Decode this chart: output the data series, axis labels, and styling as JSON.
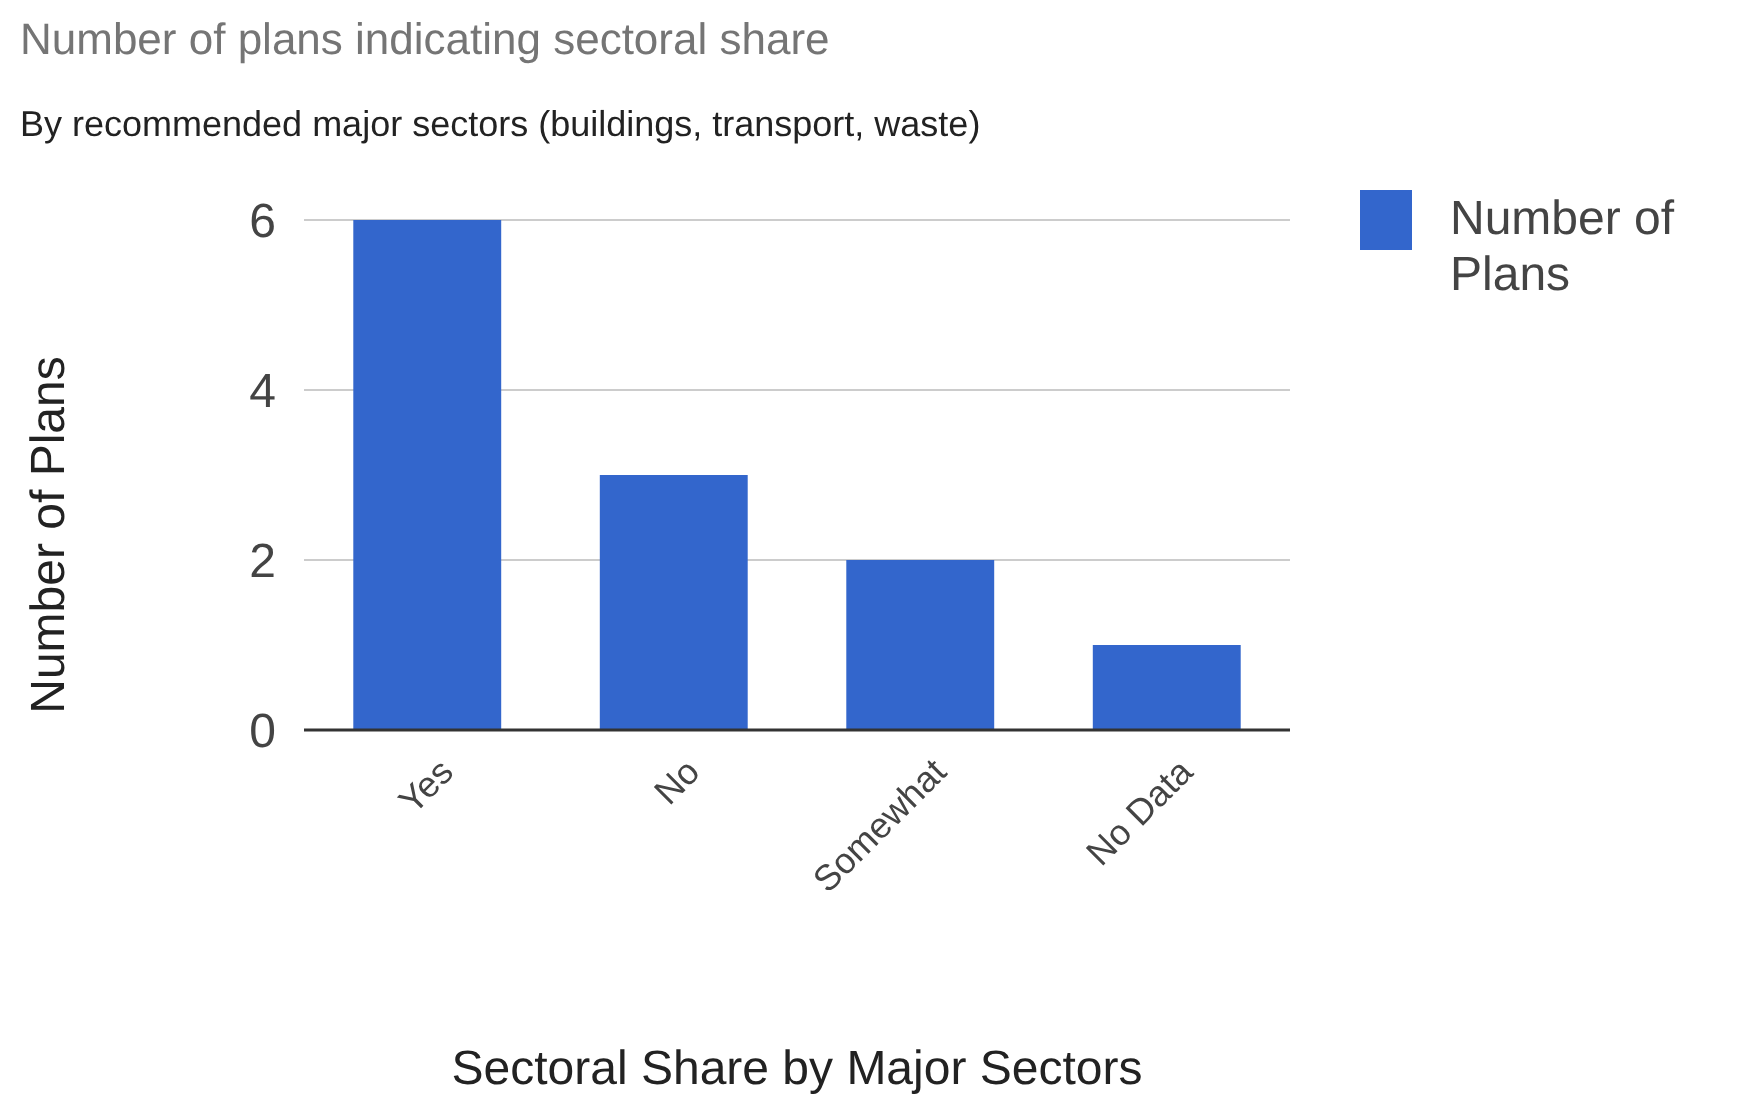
{
  "chart_data": {
    "type": "bar",
    "title": "Number of plans indicating sectoral share",
    "subtitle": "By recommended major sectors (buildings, transport, waste)",
    "xlabel": "Sectoral Share by Major Sectors",
    "ylabel": "Number of Plans",
    "categories": [
      "Yes",
      "No",
      "Somewhat",
      "No Data"
    ],
    "series": [
      {
        "name": "Number of Plans",
        "color": "#3366cc",
        "values": [
          6,
          3,
          2,
          1
        ]
      }
    ],
    "ylim": [
      0,
      6
    ],
    "yticks": [
      0,
      2,
      4,
      6
    ],
    "grid": "y",
    "legend": "right"
  }
}
